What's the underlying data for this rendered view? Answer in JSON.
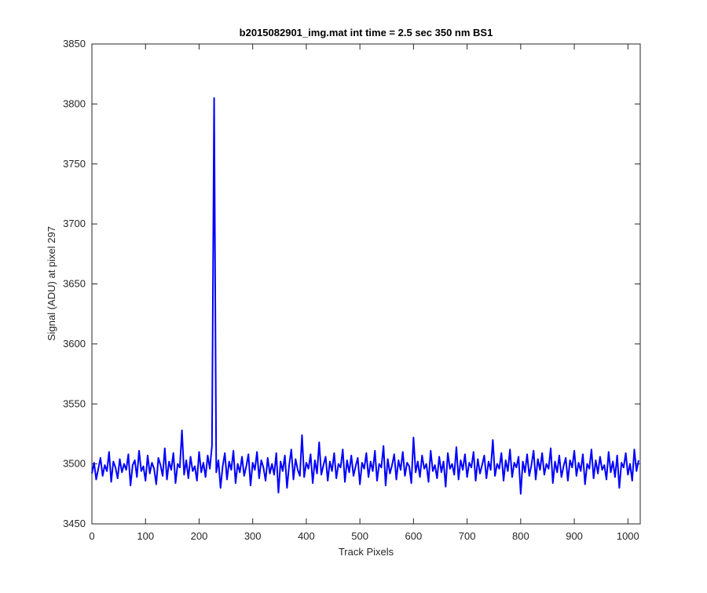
{
  "chart_data": {
    "type": "line",
    "title": "b2015082901_img.mat int time = 2.5 sec  350 nm BS1",
    "x_label": "Track Pixels",
    "y_label": "Signal (ADU) at pixel 297",
    "xlim": [
      0,
      1023
    ],
    "ylim": [
      3450,
      3850
    ],
    "xticks": [
      0,
      100,
      200,
      300,
      400,
      500,
      600,
      700,
      800,
      900,
      1000
    ],
    "yticks": [
      3450,
      3500,
      3550,
      3600,
      3650,
      3700,
      3750,
      3800,
      3850
    ],
    "x": [
      0,
      4,
      8,
      12,
      16,
      20,
      24,
      28,
      32,
      36,
      40,
      44,
      48,
      52,
      56,
      60,
      64,
      68,
      72,
      76,
      80,
      84,
      88,
      92,
      96,
      100,
      104,
      108,
      112,
      116,
      120,
      124,
      128,
      132,
      136,
      140,
      144,
      148,
      152,
      156,
      160,
      164,
      168,
      172,
      176,
      180,
      184,
      188,
      192,
      196,
      200,
      204,
      208,
      212,
      216,
      220,
      224,
      228,
      232,
      236,
      240,
      244,
      248,
      252,
      256,
      260,
      264,
      268,
      272,
      276,
      280,
      284,
      288,
      292,
      296,
      300,
      304,
      308,
      312,
      316,
      320,
      324,
      328,
      332,
      336,
      340,
      344,
      348,
      352,
      356,
      360,
      364,
      368,
      372,
      376,
      380,
      384,
      388,
      392,
      396,
      400,
      404,
      408,
      412,
      416,
      420,
      424,
      428,
      432,
      436,
      440,
      444,
      448,
      452,
      456,
      460,
      464,
      468,
      472,
      476,
      480,
      484,
      488,
      492,
      496,
      500,
      504,
      508,
      512,
      516,
      520,
      524,
      528,
      532,
      536,
      540,
      544,
      548,
      552,
      556,
      560,
      564,
      568,
      572,
      576,
      580,
      584,
      588,
      592,
      596,
      600,
      604,
      608,
      612,
      616,
      620,
      624,
      628,
      632,
      636,
      640,
      644,
      648,
      652,
      656,
      660,
      664,
      668,
      672,
      676,
      680,
      684,
      688,
      692,
      696,
      700,
      704,
      708,
      712,
      716,
      720,
      724,
      728,
      732,
      736,
      740,
      744,
      748,
      752,
      756,
      760,
      764,
      768,
      772,
      776,
      780,
      784,
      788,
      792,
      796,
      800,
      804,
      808,
      812,
      816,
      820,
      824,
      828,
      832,
      836,
      840,
      844,
      848,
      852,
      856,
      860,
      864,
      868,
      872,
      876,
      880,
      884,
      888,
      892,
      896,
      900,
      904,
      908,
      912,
      916,
      920,
      924,
      928,
      932,
      936,
      940,
      944,
      948,
      952,
      956,
      960,
      964,
      968,
      972,
      976,
      980,
      984,
      988,
      992,
      996,
      1000,
      1004,
      1008,
      1012,
      1016,
      1020
    ],
    "series": [
      {
        "color": "#0000ff",
        "values": [
          3492,
          3501,
          3487,
          3496,
          3505,
          3490,
          3499,
          3494,
          3510,
          3485,
          3502,
          3497,
          3488,
          3504,
          3493,
          3500,
          3495,
          3508,
          3482,
          3499,
          3503,
          3489,
          3511,
          3494,
          3498,
          3486,
          3507,
          3492,
          3501,
          3496,
          3483,
          3505,
          3499,
          3490,
          3513,
          3487,
          3502,
          3495,
          3509,
          3484,
          3500,
          3497,
          3528,
          3491,
          3503,
          3488,
          3506,
          3494,
          3498,
          3486,
          3510,
          3493,
          3501,
          3489,
          3507,
          3496,
          3515,
          3805,
          3493,
          3503,
          3480,
          3498,
          3509,
          3487,
          3502,
          3495,
          3511,
          3484,
          3500,
          3493,
          3506,
          3490,
          3498,
          3508,
          3482,
          3501,
          3495,
          3510,
          3488,
          3503,
          3497,
          3486,
          3505,
          3492,
          3500,
          3491,
          3509,
          3476,
          3502,
          3494,
          3507,
          3480,
          3499,
          3512,
          3487,
          3504,
          3495,
          3490,
          3524,
          3489,
          3501,
          3496,
          3508,
          3484,
          3503,
          3492,
          3518,
          3491,
          3499,
          3506,
          3486,
          3502,
          3494,
          3509,
          3488,
          3500,
          3497,
          3512,
          3485,
          3503,
          3493,
          3507,
          3490,
          3498,
          3505,
          3483,
          3501,
          3496,
          3509,
          3489,
          3502,
          3494,
          3511,
          3486,
          3500,
          3497,
          3515,
          3482,
          3504,
          3492,
          3499,
          3508,
          3487,
          3503,
          3495,
          3510,
          3490,
          3501,
          3498,
          3484,
          3522,
          3493,
          3502,
          3489,
          3507,
          3496,
          3500,
          3485,
          3511,
          3494,
          3499,
          3488,
          3506,
          3493,
          3502,
          3481,
          3509,
          3496,
          3500,
          3491,
          3514,
          3487,
          3503,
          3495,
          3508,
          3489,
          3501,
          3497,
          3510,
          3486,
          3504,
          3492,
          3499,
          3507,
          3488,
          3502,
          3495,
          3520,
          3490,
          3500,
          3496,
          3509,
          3486,
          3503,
          3494,
          3512,
          3489,
          3501,
          3497,
          3506,
          3475,
          3502,
          3493,
          3508,
          3490,
          3499,
          3511,
          3487,
          3504,
          3495,
          3509,
          3491,
          3500,
          3496,
          3513,
          3484,
          3502,
          3493,
          3507,
          3489,
          3498,
          3505,
          3486,
          3503,
          3497,
          3511,
          3490,
          3501,
          3494,
          3508,
          3483,
          3500,
          3496,
          3512,
          3488,
          3503,
          3492,
          3506,
          3495,
          3499,
          3487,
          3510,
          3493,
          3502,
          3489,
          3507,
          3480,
          3501,
          3497,
          3509,
          3491,
          3500,
          3486,
          3512,
          3494,
          3503
        ]
      }
    ]
  }
}
